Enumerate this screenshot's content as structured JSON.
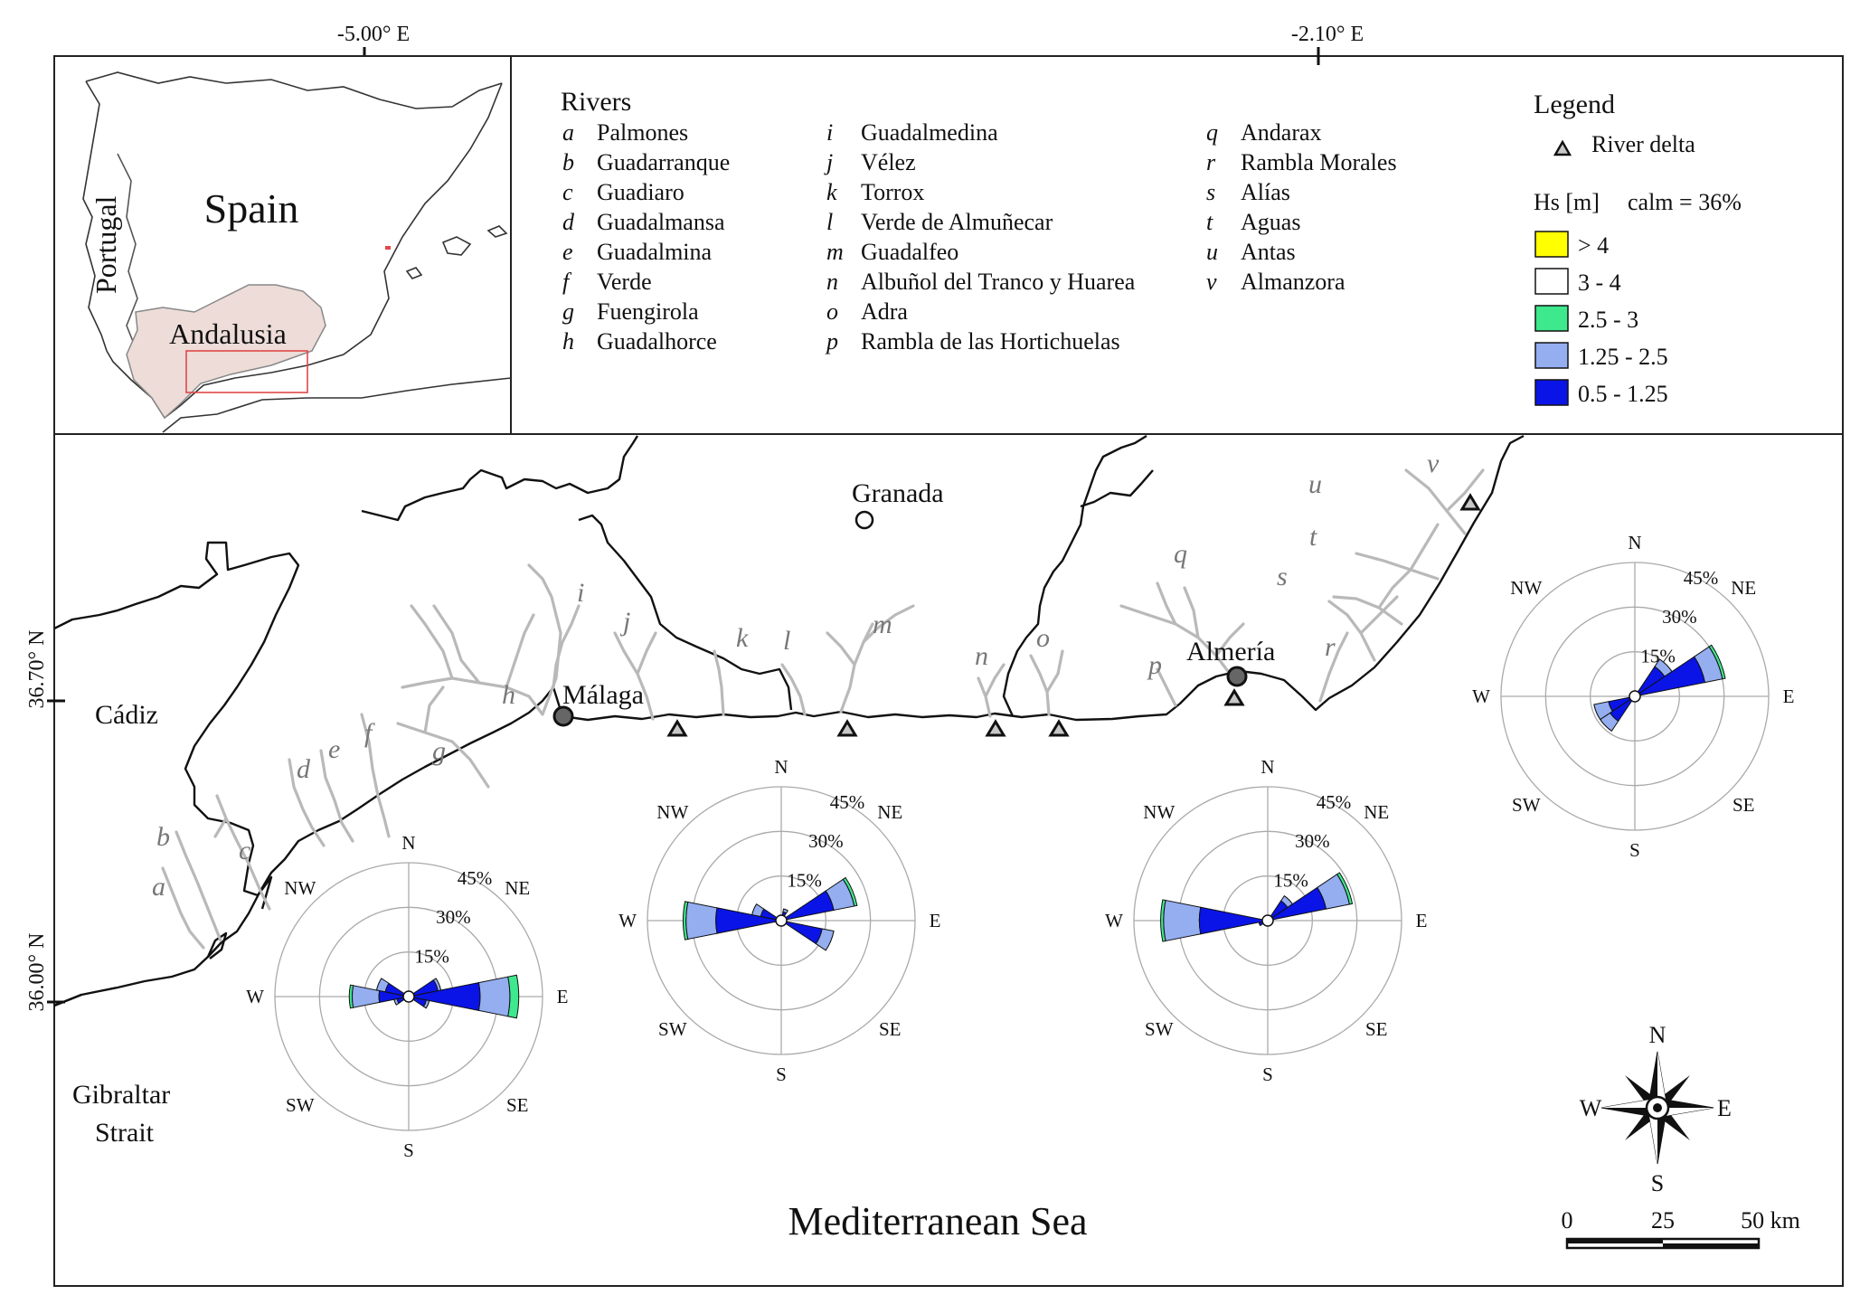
{
  "axes": {
    "lon_labels": [
      "-5.00° E",
      "-2.10° E"
    ],
    "lat_labels": [
      "36.70° N",
      "36.00° N"
    ]
  },
  "inset": {
    "country": "Spain",
    "neighbor": "Portugal",
    "region": "Andalusia",
    "region_fill": "#eddcd8",
    "study_box_color": "#e04848"
  },
  "rivers": {
    "title": "Rivers",
    "items": [
      {
        "letter": "a",
        "name": "Palmones"
      },
      {
        "letter": "b",
        "name": "Guadarranque"
      },
      {
        "letter": "c",
        "name": "Guadiaro"
      },
      {
        "letter": "d",
        "name": "Guadalmansa"
      },
      {
        "letter": "e",
        "name": "Guadalmina"
      },
      {
        "letter": "f",
        "name": "Verde"
      },
      {
        "letter": "g",
        "name": "Fuengirola"
      },
      {
        "letter": "h",
        "name": "Guadalhorce"
      },
      {
        "letter": "i",
        "name": "Guadalmedina"
      },
      {
        "letter": "j",
        "name": "Vélez"
      },
      {
        "letter": "k",
        "name": "Torrox"
      },
      {
        "letter": "l",
        "name": "Verde de Almuñecar"
      },
      {
        "letter": "m",
        "name": "Guadalfeo"
      },
      {
        "letter": "n",
        "name": "Albuñol del Tranco y Huarea"
      },
      {
        "letter": "o",
        "name": "Adra"
      },
      {
        "letter": "p",
        "name": "Rambla de las Hortichuelas"
      },
      {
        "letter": "q",
        "name": "Andarax"
      },
      {
        "letter": "r",
        "name": "Rambla Morales"
      },
      {
        "letter": "s",
        "name": "Alías"
      },
      {
        "letter": "t",
        "name": "Aguas"
      },
      {
        "letter": "u",
        "name": "Antas"
      },
      {
        "letter": "v",
        "name": "Almanzora"
      }
    ]
  },
  "legend": {
    "title": "Legend",
    "delta_label": "River delta",
    "hs_label": "Hs [m]",
    "calm_label": "calm = 36%",
    "classes": [
      {
        "label": "> 4",
        "color": "#ffff00"
      },
      {
        "label": "3 - 4",
        "color": "#ffffff"
      },
      {
        "label": "2.5 - 3",
        "color": "#3ee88c"
      },
      {
        "label": "1.25 - 2.5",
        "color": "#94aef0"
      },
      {
        "label": "0.5 - 1.25",
        "color": "#0a14e6"
      }
    ]
  },
  "places": {
    "granada": "Granada",
    "malaga": "Málaga",
    "almeria": "Almería",
    "cadiz": "Cádiz",
    "gibraltar_line1": "Gibraltar",
    "gibraltar_line2": "Strait",
    "sea": "Mediterranean Sea"
  },
  "rose_labels": {
    "rings": [
      "15%",
      "30%",
      "45%"
    ],
    "dirs": [
      "N",
      "NE",
      "E",
      "SE",
      "S",
      "SW",
      "W",
      "NW"
    ]
  },
  "wave_roses": [
    {
      "name": "rose-gibraltar",
      "petals": [
        {
          "dir": "E",
          "lo": 24,
          "mid": 34,
          "hi": 37
        },
        {
          "dir": "ENE",
          "lo": 10,
          "mid": 11,
          "hi": 11
        },
        {
          "dir": "WNW",
          "lo": 8,
          "mid": 11,
          "hi": 11
        },
        {
          "dir": "W",
          "lo": 10,
          "mid": 19,
          "hi": 20
        },
        {
          "dir": "WSW",
          "lo": 4,
          "mid": 5,
          "hi": 5
        },
        {
          "dir": "ESE",
          "lo": 6,
          "mid": 7,
          "hi": 7
        }
      ]
    },
    {
      "name": "rose-malaga",
      "petals": [
        {
          "dir": "W",
          "lo": 22,
          "mid": 32,
          "hi": 33
        },
        {
          "dir": "ENE",
          "lo": 18,
          "mid": 25,
          "hi": 26
        },
        {
          "dir": "ESE",
          "lo": 14,
          "mid": 18,
          "hi": 18
        },
        {
          "dir": "WNW",
          "lo": 7,
          "mid": 10,
          "hi": 10
        },
        {
          "dir": "NNE",
          "lo": 3,
          "mid": 4,
          "hi": 4
        }
      ]
    },
    {
      "name": "rose-almeria",
      "petals": [
        {
          "dir": "W",
          "lo": 23,
          "mid": 35,
          "hi": 36
        },
        {
          "dir": "ENE",
          "lo": 20,
          "mid": 28,
          "hi": 29
        },
        {
          "dir": "NE",
          "lo": 8,
          "mid": 10,
          "hi": 10
        },
        {
          "dir": "WSW",
          "lo": 3,
          "mid": 3,
          "hi": 3
        }
      ]
    },
    {
      "name": "rose-east",
      "petals": [
        {
          "dir": "ENE",
          "lo": 24,
          "mid": 30,
          "hi": 31
        },
        {
          "dir": "NE",
          "lo": 12,
          "mid": 15,
          "hi": 15
        },
        {
          "dir": "SW",
          "lo": 10,
          "mid": 14,
          "hi": 14
        },
        {
          "dir": "WSW",
          "lo": 9,
          "mid": 14,
          "hi": 14
        }
      ]
    }
  ],
  "compass": {
    "n": "N",
    "e": "E",
    "s": "S",
    "w": "W"
  },
  "scale_bar": {
    "ticks": [
      "0",
      "25",
      "50 km"
    ]
  }
}
